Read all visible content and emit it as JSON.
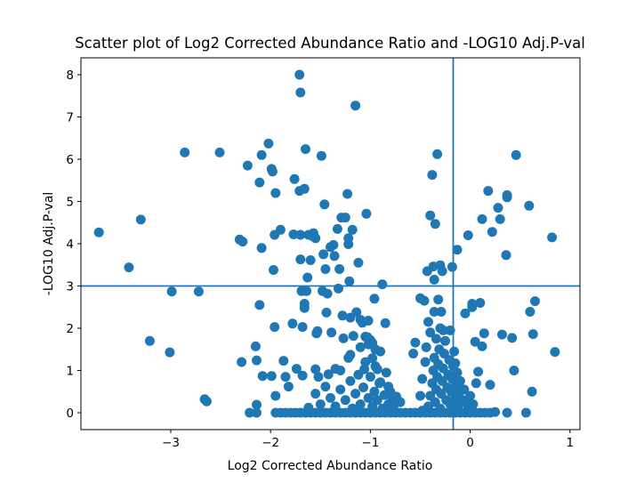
{
  "chart_data": {
    "type": "scatter",
    "title": "Scatter plot of Log2 Corrected Abundance Ratio and -LOG10 Adj.P-val",
    "xlabel": "Log2 Corrected Abundance Ratio",
    "ylabel": "-LOG10 Adj.P-val",
    "xlim": [
      -3.9,
      1.1
    ],
    "ylim": [
      -0.4,
      8.4
    ],
    "xticks": [
      -3,
      -2,
      -1,
      0,
      1
    ],
    "yticks": [
      0,
      1,
      2,
      3,
      4,
      5,
      6,
      7,
      8
    ],
    "grid": false,
    "color": "#1f77b4",
    "vline_x": -0.17,
    "hline_y": 3.0,
    "points": [
      [
        -3.72,
        4.27
      ],
      [
        -3.42,
        3.44
      ],
      [
        -3.3,
        4.57
      ],
      [
        -3.21,
        1.7
      ],
      [
        -2.99,
        2.87
      ],
      [
        -3.01,
        1.43
      ],
      [
        -2.86,
        6.16
      ],
      [
        -2.72,
        2.87
      ],
      [
        -2.66,
        0.32
      ],
      [
        -2.64,
        0.27
      ],
      [
        -2.51,
        6.16
      ],
      [
        -2.31,
        4.1
      ],
      [
        -2.28,
        4.05
      ],
      [
        -2.29,
        1.2
      ],
      [
        -2.23,
        5.85
      ],
      [
        -2.21,
        0.0
      ],
      [
        -2.15,
        1.57
      ],
      [
        -2.14,
        1.24
      ],
      [
        -2.14,
        0.19
      ],
      [
        -2.14,
        0.0
      ],
      [
        -2.11,
        5.45
      ],
      [
        -2.11,
        2.55
      ],
      [
        -2.09,
        6.1
      ],
      [
        -2.09,
        3.9
      ],
      [
        -2.08,
        0.87
      ],
      [
        -2.02,
        6.37
      ],
      [
        -1.99,
        0.87
      ],
      [
        -1.99,
        5.77
      ],
      [
        -1.98,
        5.71
      ],
      [
        -1.97,
        3.38
      ],
      [
        -1.96,
        4.21
      ],
      [
        -1.95,
        5.2
      ],
      [
        -1.96,
        2.03
      ],
      [
        -1.95,
        0.4
      ],
      [
        -1.9,
        4.33
      ],
      [
        -1.87,
        1.23
      ],
      [
        -1.85,
        0.85
      ],
      [
        -1.82,
        0.62
      ],
      [
        -1.78,
        2.11
      ],
      [
        -1.77,
        4.22
      ],
      [
        -1.76,
        5.53
      ],
      [
        -1.74,
        1.04
      ],
      [
        -1.71,
        8.0
      ],
      [
        -1.7,
        7.58
      ],
      [
        -1.71,
        5.25
      ],
      [
        -1.7,
        4.21
      ],
      [
        -1.7,
        3.63
      ],
      [
        -1.69,
        2.88
      ],
      [
        -1.68,
        2.03
      ],
      [
        -1.68,
        0.88
      ],
      [
        -1.66,
        5.3
      ],
      [
        -1.66,
        2.58
      ],
      [
        -1.66,
        2.48
      ],
      [
        -1.65,
        6.24
      ],
      [
        -1.64,
        2.88
      ],
      [
        -1.63,
        3.2
      ],
      [
        -1.62,
        4.21
      ],
      [
        -1.6,
        3.61
      ],
      [
        -1.58,
        4.18
      ],
      [
        -1.57,
        4.25
      ],
      [
        -1.55,
        4.13
      ],
      [
        -1.55,
        1.03
      ],
      [
        -1.54,
        1.88
      ],
      [
        -1.53,
        1.93
      ],
      [
        -1.52,
        0.85
      ],
      [
        -1.49,
        6.08
      ],
      [
        -1.48,
        2.88
      ],
      [
        -1.47,
        3.75
      ],
      [
        -1.46,
        4.93
      ],
      [
        -1.45,
        3.4
      ],
      [
        -1.44,
        2.37
      ],
      [
        -1.43,
        2.82
      ],
      [
        -1.42,
        0.91
      ],
      [
        -1.4,
        3.92
      ],
      [
        -1.39,
        1.9
      ],
      [
        -1.37,
        3.97
      ],
      [
        -1.36,
        3.71
      ],
      [
        -1.35,
        1.04
      ],
      [
        -1.33,
        4.35
      ],
      [
        -1.32,
        2.94
      ],
      [
        -1.31,
        3.4
      ],
      [
        -1.29,
        4.62
      ],
      [
        -1.28,
        2.3
      ],
      [
        -1.27,
        1.76
      ],
      [
        -1.25,
        4.62
      ],
      [
        -1.23,
        5.18
      ],
      [
        -1.22,
        4.13
      ],
      [
        -1.22,
        3.99
      ],
      [
        -1.21,
        3.11
      ],
      [
        -1.2,
        2.25
      ],
      [
        -1.2,
        1.37
      ],
      [
        -1.18,
        4.33
      ],
      [
        -1.17,
        1.82
      ],
      [
        -1.15,
        7.27
      ],
      [
        -1.14,
        2.38
      ],
      [
        -1.12,
        3.55
      ],
      [
        -1.1,
        2.2
      ],
      [
        -1.08,
        2.13
      ],
      [
        -1.06,
        1.03
      ],
      [
        -1.04,
        4.71
      ],
      [
        -1.03,
        1.79
      ],
      [
        -1.02,
        1.62
      ],
      [
        -1.02,
        2.18
      ],
      [
        -1.0,
        1.72
      ],
      [
        -0.98,
        1.29
      ],
      [
        -0.96,
        2.7
      ],
      [
        -0.95,
        1.5
      ],
      [
        -0.93,
        1.03
      ],
      [
        -0.9,
        0.72
      ],
      [
        -0.88,
        3.04
      ],
      [
        -0.85,
        2.12
      ],
      [
        -0.82,
        0.62
      ],
      [
        -0.78,
        0.3
      ],
      [
        -0.7,
        0.25
      ],
      [
        -0.57,
        1.4
      ],
      [
        -0.55,
        1.66
      ],
      [
        -0.5,
        2.71
      ],
      [
        -0.48,
        0.05
      ],
      [
        -0.46,
        2.65
      ],
      [
        -0.43,
        3.35
      ],
      [
        -0.42,
        2.15
      ],
      [
        -0.4,
        4.67
      ],
      [
        -0.38,
        5.63
      ],
      [
        -0.37,
        3.46
      ],
      [
        -0.36,
        2.39
      ],
      [
        -0.36,
        3.15
      ],
      [
        -0.35,
        4.47
      ],
      [
        -0.33,
        6.12
      ],
      [
        -0.32,
        2.68
      ],
      [
        -0.3,
        3.49
      ],
      [
        -0.3,
        2.0
      ],
      [
        -0.29,
        2.39
      ],
      [
        -0.28,
        3.35
      ],
      [
        -0.2,
        1.95
      ],
      [
        -0.18,
        3.45
      ],
      [
        -0.15,
        1.17
      ],
      [
        -0.13,
        3.86
      ],
      [
        -0.05,
        2.35
      ],
      [
        -0.02,
        4.2
      ],
      [
        0.02,
        2.5
      ],
      [
        0.02,
        2.58
      ],
      [
        0.05,
        1.68
      ],
      [
        0.08,
        0.97
      ],
      [
        0.1,
        2.6
      ],
      [
        0.12,
        4.58
      ],
      [
        0.12,
        1.57
      ],
      [
        0.14,
        1.88
      ],
      [
        0.18,
        5.25
      ],
      [
        0.2,
        0.66
      ],
      [
        0.22,
        4.28
      ],
      [
        0.25,
        0.02
      ],
      [
        0.28,
        4.85
      ],
      [
        0.3,
        4.58
      ],
      [
        0.32,
        1.85
      ],
      [
        0.36,
        3.73
      ],
      [
        0.37,
        5.15
      ],
      [
        0.37,
        5.1
      ],
      [
        0.37,
        0.0
      ],
      [
        0.42,
        1.77
      ],
      [
        0.44,
        1.0
      ],
      [
        0.46,
        6.1
      ],
      [
        0.56,
        0.0
      ],
      [
        0.59,
        4.9
      ],
      [
        0.6,
        2.39
      ],
      [
        0.62,
        0.5
      ],
      [
        0.63,
        1.86
      ],
      [
        0.65,
        2.64
      ],
      [
        0.82,
        4.15
      ],
      [
        0.85,
        1.44
      ],
      [
        -1.95,
        0.0
      ],
      [
        -1.9,
        0.0
      ],
      [
        -1.85,
        0.0
      ],
      [
        -1.8,
        0.0
      ],
      [
        -1.75,
        0.0
      ],
      [
        -1.7,
        0.0
      ],
      [
        -1.65,
        0.0
      ],
      [
        -1.6,
        0.0
      ],
      [
        -1.55,
        0.0
      ],
      [
        -1.5,
        0.0
      ],
      [
        -1.45,
        0.0
      ],
      [
        -1.4,
        0.0
      ],
      [
        -1.35,
        0.0
      ],
      [
        -1.3,
        0.0
      ],
      [
        -1.25,
        0.0
      ],
      [
        -1.2,
        0.0
      ],
      [
        -1.15,
        0.0
      ],
      [
        -1.1,
        0.0
      ],
      [
        -1.05,
        0.0
      ],
      [
        -1.0,
        0.0
      ],
      [
        -0.95,
        0.0
      ],
      [
        -0.9,
        0.0
      ],
      [
        -0.85,
        0.0
      ],
      [
        -0.8,
        0.0
      ],
      [
        -0.75,
        0.0
      ],
      [
        -0.7,
        0.0
      ],
      [
        -0.65,
        0.0
      ],
      [
        -0.6,
        0.0
      ],
      [
        -0.55,
        0.0
      ],
      [
        -0.5,
        0.0
      ],
      [
        -0.45,
        0.0
      ],
      [
        -0.4,
        0.0
      ],
      [
        -0.35,
        0.0
      ],
      [
        -0.3,
        0.0
      ],
      [
        -0.25,
        0.0
      ],
      [
        -0.2,
        0.0
      ],
      [
        -0.15,
        0.0
      ],
      [
        -0.1,
        0.0
      ],
      [
        -0.05,
        0.0
      ],
      [
        0.0,
        0.0
      ],
      [
        0.05,
        0.0
      ],
      [
        0.1,
        0.0
      ],
      [
        0.15,
        0.0
      ],
      [
        0.2,
        0.0
      ],
      [
        -1.62,
        0.12
      ],
      [
        -1.55,
        0.45
      ],
      [
        -1.5,
        0.2
      ],
      [
        -1.45,
        0.62
      ],
      [
        -1.4,
        0.35
      ],
      [
        -1.35,
        0.15
      ],
      [
        -1.3,
        0.55
      ],
      [
        -1.25,
        0.3
      ],
      [
        -1.2,
        0.75
      ],
      [
        -1.18,
        0.1
      ],
      [
        -1.15,
        0.45
      ],
      [
        -1.12,
        0.9
      ],
      [
        -1.1,
        0.2
      ],
      [
        -1.07,
        0.6
      ],
      [
        -1.05,
        1.2
      ],
      [
        -1.02,
        0.35
      ],
      [
        -1.0,
        0.85
      ],
      [
        -0.98,
        0.15
      ],
      [
        -0.96,
        0.5
      ],
      [
        -0.95,
        1.1
      ],
      [
        -0.93,
        0.3
      ],
      [
        -0.91,
        0.7
      ],
      [
        -0.9,
        1.45
      ],
      [
        -0.88,
        0.1
      ],
      [
        -0.86,
        0.42
      ],
      [
        -0.84,
        0.95
      ],
      [
        -0.82,
        0.2
      ],
      [
        -0.8,
        0.5
      ],
      [
        -0.77,
        0.12
      ],
      [
        -0.74,
        0.38
      ],
      [
        -1.3,
        1.0
      ],
      [
        -1.22,
        1.3
      ],
      [
        -1.1,
        1.55
      ],
      [
        -1.05,
        1.8
      ],
      [
        -0.98,
        1.65
      ],
      [
        -0.42,
        0.15
      ],
      [
        -0.4,
        0.4
      ],
      [
        -0.38,
        0.7
      ],
      [
        -0.37,
        1.0
      ],
      [
        -0.36,
        1.3
      ],
      [
        -0.35,
        0.25
      ],
      [
        -0.34,
        0.55
      ],
      [
        -0.33,
        0.85
      ],
      [
        -0.32,
        1.15
      ],
      [
        -0.31,
        1.5
      ],
      [
        -0.3,
        0.1
      ],
      [
        -0.29,
        0.45
      ],
      [
        -0.28,
        0.75
      ],
      [
        -0.27,
        1.05
      ],
      [
        -0.26,
        1.4
      ],
      [
        -0.25,
        1.7
      ],
      [
        -0.24,
        0.3
      ],
      [
        -0.23,
        0.6
      ],
      [
        -0.22,
        0.9
      ],
      [
        -0.21,
        1.25
      ],
      [
        -0.2,
        0.2
      ],
      [
        -0.19,
        0.5
      ],
      [
        -0.18,
        0.8
      ],
      [
        -0.17,
        1.1
      ],
      [
        -0.16,
        1.45
      ],
      [
        -0.15,
        0.35
      ],
      [
        -0.14,
        0.65
      ],
      [
        -0.13,
        0.95
      ],
      [
        -0.12,
        0.15
      ],
      [
        -0.11,
        0.45
      ],
      [
        -0.1,
        0.75
      ],
      [
        -0.08,
        0.25
      ],
      [
        -0.06,
        0.55
      ],
      [
        -0.04,
        0.3
      ],
      [
        -0.02,
        0.1
      ],
      [
        0.0,
        0.4
      ],
      [
        0.03,
        0.2
      ],
      [
        0.06,
        0.7
      ],
      [
        -0.45,
        1.2
      ],
      [
        -0.48,
        0.8
      ],
      [
        -0.5,
        0.4
      ],
      [
        -0.44,
        1.55
      ],
      [
        -0.4,
        1.9
      ],
      [
        -0.34,
        1.75
      ],
      [
        -0.27,
        1.95
      ]
    ]
  }
}
